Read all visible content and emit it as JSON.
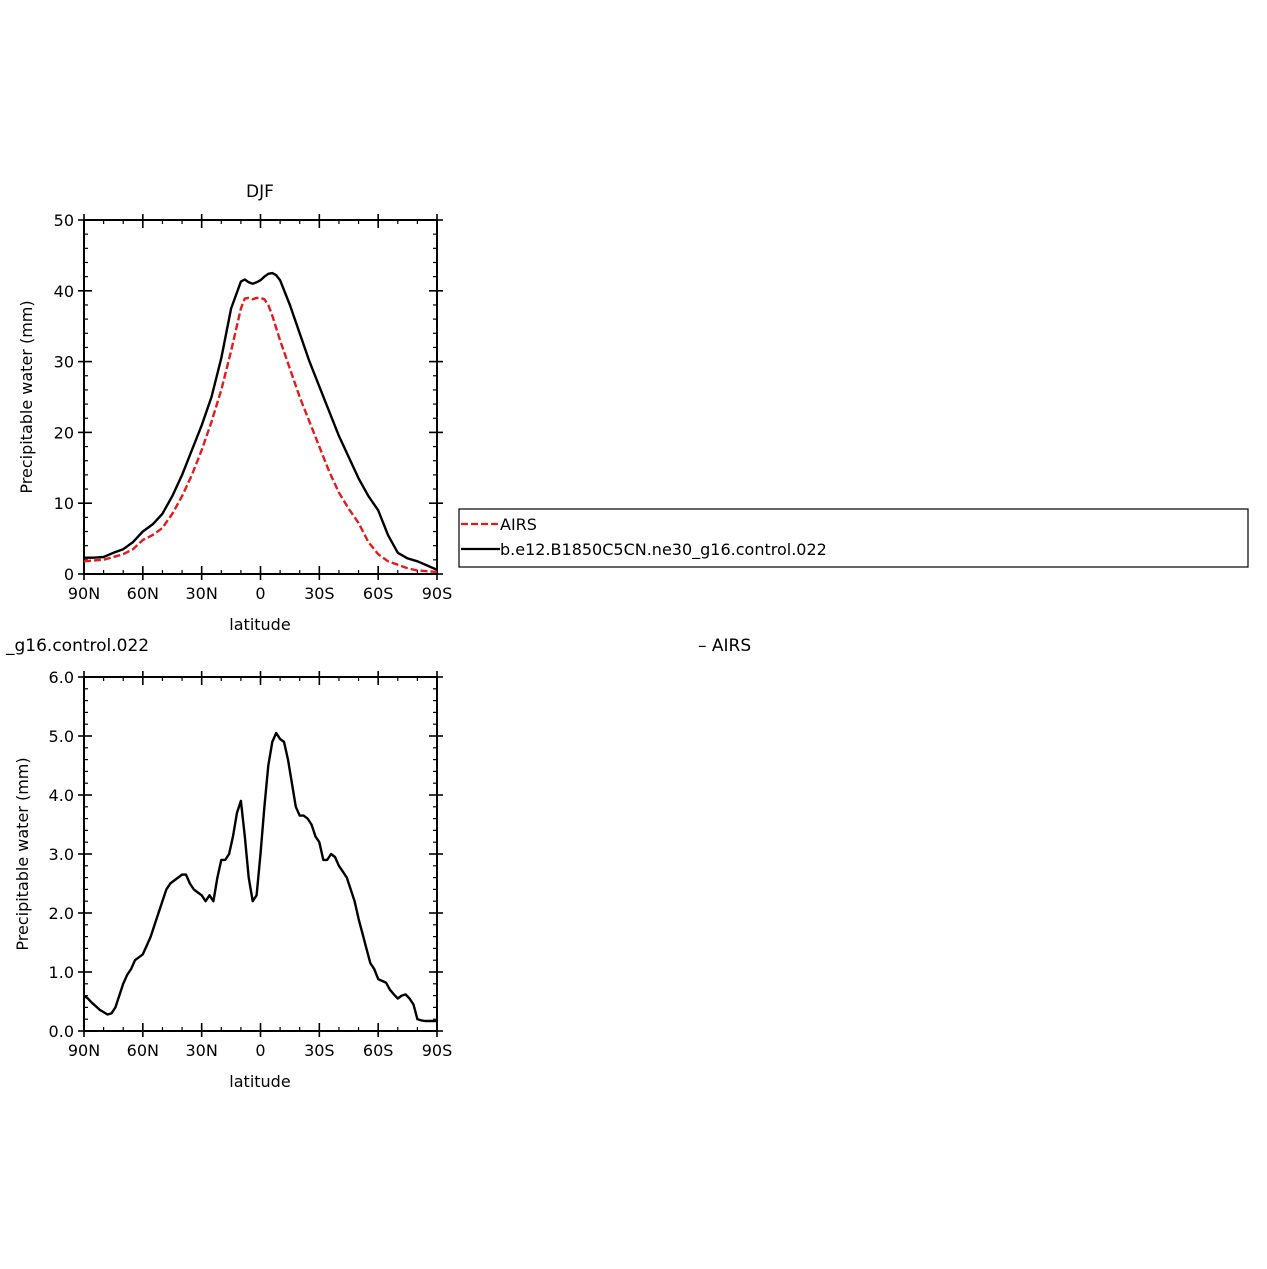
{
  "chart_data": [
    {
      "type": "line",
      "title": "DJF",
      "xlabel": "latitude",
      "ylabel": "Precipitable water (mm)",
      "xlim": [
        90,
        -90
      ],
      "ylim": [
        0,
        50
      ],
      "xticks": [
        {
          "value": 90,
          "label": "90N"
        },
        {
          "value": 60,
          "label": "60N"
        },
        {
          "value": 30,
          "label": "30N"
        },
        {
          "value": 0,
          "label": "0"
        },
        {
          "value": -30,
          "label": "30S"
        },
        {
          "value": -60,
          "label": "60S"
        },
        {
          "value": -90,
          "label": "90S"
        }
      ],
      "yticks": [
        {
          "value": 0,
          "label": "0"
        },
        {
          "value": 10,
          "label": "10"
        },
        {
          "value": 20,
          "label": "20"
        },
        {
          "value": 30,
          "label": "30"
        },
        {
          "value": 40,
          "label": "40"
        },
        {
          "value": 50,
          "label": "50"
        }
      ],
      "legend": {
        "placement": "right",
        "entries": [
          {
            "name": "AIRS",
            "color": "#e41a1c",
            "dash": "dashed"
          },
          {
            "name": "b.e12.B1850C5CN.ne30_g16.control.022",
            "color": "#000000",
            "dash": "solid"
          }
        ]
      },
      "series": [
        {
          "name": "AIRS",
          "color": "#e41a1c",
          "dash": "dashed",
          "x": [
            90,
            85,
            80,
            75,
            70,
            65,
            60,
            55,
            50,
            45,
            40,
            35,
            30,
            25,
            20,
            15,
            10,
            8,
            6,
            4,
            2,
            0,
            -2,
            -4,
            -6,
            -10,
            -15,
            -20,
            -25,
            -30,
            -35,
            -40,
            -45,
            -50,
            -55,
            -60,
            -65,
            -70,
            -75,
            -80,
            -85,
            -90
          ],
          "y": [
            1.8,
            1.9,
            2.0,
            2.4,
            2.8,
            3.5,
            4.8,
            5.5,
            6.5,
            8.5,
            11.0,
            14.0,
            17.5,
            21.5,
            26.0,
            31.5,
            37.5,
            38.9,
            39.0,
            38.8,
            39.0,
            39.0,
            38.8,
            38.0,
            36.5,
            33.0,
            29.0,
            25.0,
            21.5,
            18.0,
            14.5,
            11.5,
            9.2,
            7.2,
            4.5,
            2.8,
            1.8,
            1.3,
            0.8,
            0.5,
            0.4,
            0.3
          ]
        },
        {
          "name": "b.e12.B1850C5CN.ne30_g16.control.022",
          "color": "#000000",
          "dash": "solid",
          "x": [
            90,
            85,
            80,
            75,
            70,
            65,
            60,
            55,
            50,
            45,
            40,
            35,
            30,
            25,
            20,
            15,
            10,
            8,
            6,
            4,
            2,
            0,
            -2,
            -4,
            -6,
            -8,
            -10,
            -15,
            -20,
            -25,
            -30,
            -35,
            -40,
            -45,
            -50,
            -55,
            -60,
            -65,
            -70,
            -75,
            -80,
            -85,
            -90
          ],
          "y": [
            2.3,
            2.3,
            2.4,
            3.0,
            3.5,
            4.5,
            6.0,
            7.0,
            8.5,
            11.0,
            14.0,
            17.5,
            21.0,
            25.0,
            30.5,
            37.5,
            41.3,
            41.6,
            41.2,
            41.0,
            41.2,
            41.5,
            42.0,
            42.4,
            42.5,
            42.2,
            41.5,
            38.0,
            34.0,
            30.0,
            26.5,
            23.0,
            19.5,
            16.5,
            13.5,
            11.0,
            9.0,
            5.5,
            3.0,
            2.2,
            1.8,
            1.2,
            0.6
          ]
        }
      ]
    },
    {
      "type": "line",
      "title": "",
      "title_left": "_g16.control.022",
      "title_right": "– AIRS",
      "xlabel": "latitude",
      "ylabel": "Precipitable water (mm)",
      "xlim": [
        90,
        -90
      ],
      "ylim": [
        0,
        6
      ],
      "xticks": [
        {
          "value": 90,
          "label": "90N"
        },
        {
          "value": 60,
          "label": "60N"
        },
        {
          "value": 30,
          "label": "30N"
        },
        {
          "value": 0,
          "label": "0"
        },
        {
          "value": -30,
          "label": "30S"
        },
        {
          "value": -60,
          "label": "60S"
        },
        {
          "value": -90,
          "label": "90S"
        }
      ],
      "yticks": [
        {
          "value": 0,
          "label": "0.0"
        },
        {
          "value": 1,
          "label": "1.0"
        },
        {
          "value": 2,
          "label": "2.0"
        },
        {
          "value": 3,
          "label": "3.0"
        },
        {
          "value": 4,
          "label": "4.0"
        },
        {
          "value": 5,
          "label": "5.0"
        },
        {
          "value": 6,
          "label": "6.0"
        }
      ],
      "series": [
        {
          "color": "#000000",
          "dash": "solid",
          "x": [
            90,
            88,
            86,
            84,
            82,
            80,
            78,
            76,
            74,
            72,
            70,
            68,
            66,
            64,
            62,
            60,
            58,
            56,
            54,
            52,
            50,
            48,
            46,
            44,
            42,
            40,
            38,
            36,
            34,
            32,
            30,
            28,
            26,
            24,
            22,
            20,
            18,
            16,
            14,
            12,
            10,
            8,
            6,
            4,
            2,
            0,
            -2,
            -4,
            -6,
            -8,
            -10,
            -12,
            -14,
            -16,
            -18,
            -20,
            -22,
            -24,
            -26,
            -28,
            -30,
            -32,
            -34,
            -36,
            -38,
            -40,
            -42,
            -44,
            -46,
            -48,
            -50,
            -52,
            -54,
            -56,
            -58,
            -60,
            -62,
            -64,
            -66,
            -68,
            -70,
            -72,
            -74,
            -76,
            -78,
            -80,
            -82,
            -84,
            -86,
            -88,
            -90
          ],
          "y": [
            0.6,
            0.55,
            0.48,
            0.42,
            0.36,
            0.32,
            0.28,
            0.3,
            0.4,
            0.6,
            0.8,
            0.95,
            1.05,
            1.2,
            1.25,
            1.3,
            1.45,
            1.6,
            1.8,
            2.0,
            2.2,
            2.4,
            2.5,
            2.55,
            2.6,
            2.65,
            2.65,
            2.5,
            2.4,
            2.35,
            2.3,
            2.2,
            2.3,
            2.2,
            2.6,
            2.9,
            2.9,
            3.0,
            3.3,
            3.7,
            3.9,
            3.3,
            2.6,
            2.2,
            2.3,
            3.0,
            3.8,
            4.5,
            4.9,
            5.05,
            4.95,
            4.9,
            4.6,
            4.2,
            3.8,
            3.65,
            3.65,
            3.6,
            3.5,
            3.3,
            3.2,
            2.9,
            2.9,
            3.0,
            2.95,
            2.8,
            2.7,
            2.6,
            2.4,
            2.2,
            1.9,
            1.65,
            1.4,
            1.15,
            1.05,
            0.88,
            0.85,
            0.82,
            0.7,
            0.62,
            0.55,
            0.6,
            0.62,
            0.55,
            0.45,
            0.2,
            0.18,
            0.17,
            0.17,
            0.17,
            0.17
          ]
        }
      ]
    }
  ]
}
